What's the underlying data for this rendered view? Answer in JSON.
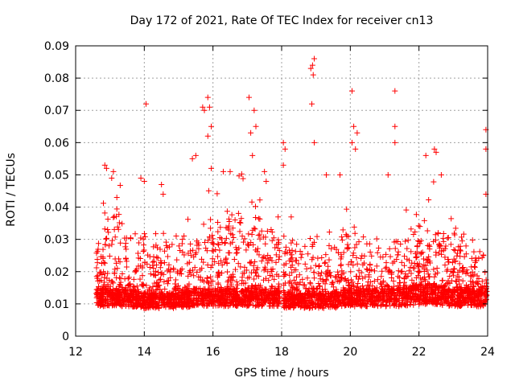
{
  "chart_data": {
    "type": "scatter",
    "title": "Day 172 of 2021, Rate Of TEC Index for receiver cn13",
    "xlabel": "GPS time / hours",
    "ylabel": "ROTI / TECUs",
    "xlim": [
      12,
      24
    ],
    "ylim": [
      0,
      0.09
    ],
    "xticks": [
      "12",
      "14",
      "16",
      "18",
      "20",
      "22",
      "24"
    ],
    "yticks": [
      "0",
      "0.01",
      "0.02",
      "0.03",
      "0.04",
      "0.05",
      "0.06",
      "0.07",
      "0.08",
      "0.09"
    ],
    "grid": true,
    "marker": "+",
    "color": "#ff0000",
    "series": [
      {
        "name": "ROTI",
        "description_of_density": "dense cloud 0.005-0.03 from 12.6 to 24 h, gap 17.95-18.05 h",
        "envelope": [
          {
            "t": 12.6,
            "base": 0.012,
            "spread": 0.018
          },
          {
            "t": 13.0,
            "base": 0.012,
            "spread": 0.028
          },
          {
            "t": 13.5,
            "base": 0.012,
            "spread": 0.022
          },
          {
            "t": 14.0,
            "base": 0.011,
            "spread": 0.02
          },
          {
            "t": 14.5,
            "base": 0.011,
            "spread": 0.018
          },
          {
            "t": 15.0,
            "base": 0.011,
            "spread": 0.016
          },
          {
            "t": 15.5,
            "base": 0.012,
            "spread": 0.02
          },
          {
            "t": 16.0,
            "base": 0.012,
            "spread": 0.025
          },
          {
            "t": 16.5,
            "base": 0.012,
            "spread": 0.028
          },
          {
            "t": 17.0,
            "base": 0.012,
            "spread": 0.026
          },
          {
            "t": 17.5,
            "base": 0.012,
            "spread": 0.024
          },
          {
            "t": 17.9,
            "base": 0.012,
            "spread": 0.022
          },
          {
            "t": 18.1,
            "base": 0.011,
            "spread": 0.02
          },
          {
            "t": 18.5,
            "base": 0.011,
            "spread": 0.018
          },
          {
            "t": 19.0,
            "base": 0.011,
            "spread": 0.016
          },
          {
            "t": 19.5,
            "base": 0.011,
            "spread": 0.016
          },
          {
            "t": 20.0,
            "base": 0.012,
            "spread": 0.02
          },
          {
            "t": 20.5,
            "base": 0.012,
            "spread": 0.018
          },
          {
            "t": 21.0,
            "base": 0.012,
            "spread": 0.016
          },
          {
            "t": 21.5,
            "base": 0.012,
            "spread": 0.018
          },
          {
            "t": 22.0,
            "base": 0.013,
            "spread": 0.022
          },
          {
            "t": 22.5,
            "base": 0.013,
            "spread": 0.026
          },
          {
            "t": 23.0,
            "base": 0.012,
            "spread": 0.02
          },
          {
            "t": 23.5,
            "base": 0.012,
            "spread": 0.016
          },
          {
            "t": 24.0,
            "base": 0.012,
            "spread": 0.014
          }
        ],
        "outliers": [
          [
            12.85,
            0.053
          ],
          [
            12.9,
            0.052
          ],
          [
            13.1,
            0.051
          ],
          [
            13.05,
            0.049
          ],
          [
            13.2,
            0.043
          ],
          [
            13.9,
            0.049
          ],
          [
            14.0,
            0.048
          ],
          [
            14.05,
            0.072
          ],
          [
            14.5,
            0.047
          ],
          [
            14.55,
            0.044
          ],
          [
            15.4,
            0.055
          ],
          [
            15.5,
            0.056
          ],
          [
            15.7,
            0.071
          ],
          [
            15.75,
            0.07
          ],
          [
            15.85,
            0.074
          ],
          [
            15.9,
            0.071
          ],
          [
            15.95,
            0.065
          ],
          [
            15.85,
            0.062
          ],
          [
            15.95,
            0.052
          ],
          [
            16.3,
            0.051
          ],
          [
            16.5,
            0.051
          ],
          [
            17.05,
            0.074
          ],
          [
            17.1,
            0.063
          ],
          [
            17.2,
            0.07
          ],
          [
            17.15,
            0.056
          ],
          [
            17.25,
            0.065
          ],
          [
            17.5,
            0.051
          ],
          [
            17.55,
            0.048
          ],
          [
            18.05,
            0.06
          ],
          [
            18.1,
            0.058
          ],
          [
            18.05,
            0.053
          ],
          [
            18.85,
            0.083
          ],
          [
            18.9,
            0.084
          ],
          [
            18.95,
            0.086
          ],
          [
            18.92,
            0.081
          ],
          [
            18.88,
            0.072
          ],
          [
            18.95,
            0.06
          ],
          [
            19.3,
            0.05
          ],
          [
            19.7,
            0.05
          ],
          [
            20.05,
            0.076
          ],
          [
            20.1,
            0.065
          ],
          [
            20.2,
            0.063
          ],
          [
            20.05,
            0.06
          ],
          [
            20.15,
            0.058
          ],
          [
            21.3,
            0.076
          ],
          [
            21.3,
            0.065
          ],
          [
            21.3,
            0.06
          ],
          [
            21.1,
            0.05
          ],
          [
            22.2,
            0.056
          ],
          [
            22.45,
            0.058
          ],
          [
            22.5,
            0.057
          ],
          [
            22.65,
            0.05
          ],
          [
            23.95,
            0.064
          ],
          [
            23.95,
            0.058
          ],
          [
            23.95,
            0.044
          ]
        ]
      }
    ]
  }
}
